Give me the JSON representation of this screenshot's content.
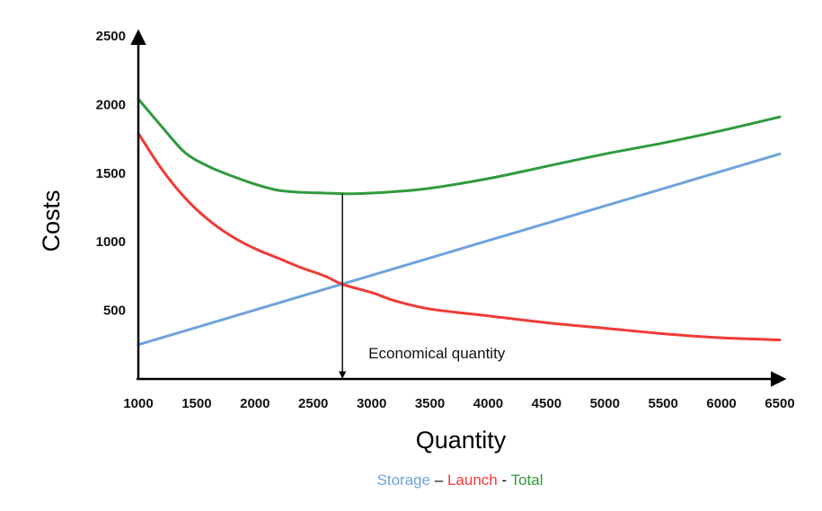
{
  "chart_data": {
    "type": "line",
    "title": "",
    "xlabel": "Quantity",
    "ylabel": "Costs",
    "xlim": [
      1000,
      6500
    ],
    "ylim": [
      0,
      2500
    ],
    "xticks": [
      1000,
      1500,
      2000,
      2500,
      3000,
      3500,
      4000,
      4500,
      5000,
      5500,
      6000,
      6500
    ],
    "yticks": [
      500,
      1000,
      1500,
      2000,
      2500
    ],
    "grid": false,
    "legend_placement": "bottom-center",
    "series": [
      {
        "name": "Storage",
        "color": "#6fa3dc",
        "x": [
          1000,
          6500
        ],
        "y": [
          250,
          1640
        ]
      },
      {
        "name": "Launch",
        "color": "#f03a37",
        "x": [
          1000,
          1200,
          1400,
          1600,
          1800,
          2000,
          2200,
          2400,
          2600,
          2750,
          3000,
          3200,
          3500,
          4000,
          4500,
          5000,
          5500,
          6000,
          6500
        ],
        "y": [
          1790,
          1530,
          1320,
          1160,
          1040,
          950,
          880,
          810,
          750,
          690,
          630,
          570,
          510,
          460,
          410,
          370,
          330,
          300,
          285
        ]
      },
      {
        "name": "Total",
        "color": "#2f9a3c",
        "x": [
          1000,
          1200,
          1400,
          1600,
          1800,
          2000,
          2200,
          2400,
          2600,
          2800,
          3000,
          3200,
          3500,
          4000,
          4500,
          5000,
          5500,
          6000,
          6500
        ],
        "y": [
          2040,
          1840,
          1650,
          1550,
          1480,
          1420,
          1375,
          1360,
          1355,
          1350,
          1355,
          1365,
          1390,
          1460,
          1550,
          1640,
          1720,
          1810,
          1910
        ]
      }
    ],
    "annotation": {
      "text": "Economical quantity",
      "x": 2750,
      "y_top": 1350,
      "y_bottom": 0
    },
    "legend": {
      "items": [
        {
          "label": "Storage",
          "color": "#6fa3dc"
        },
        {
          "label": "Launch",
          "color": "#f03a37"
        },
        {
          "label": "Total",
          "color": "#2f9a3c"
        }
      ],
      "separators": [
        " – ",
        " - "
      ]
    }
  }
}
